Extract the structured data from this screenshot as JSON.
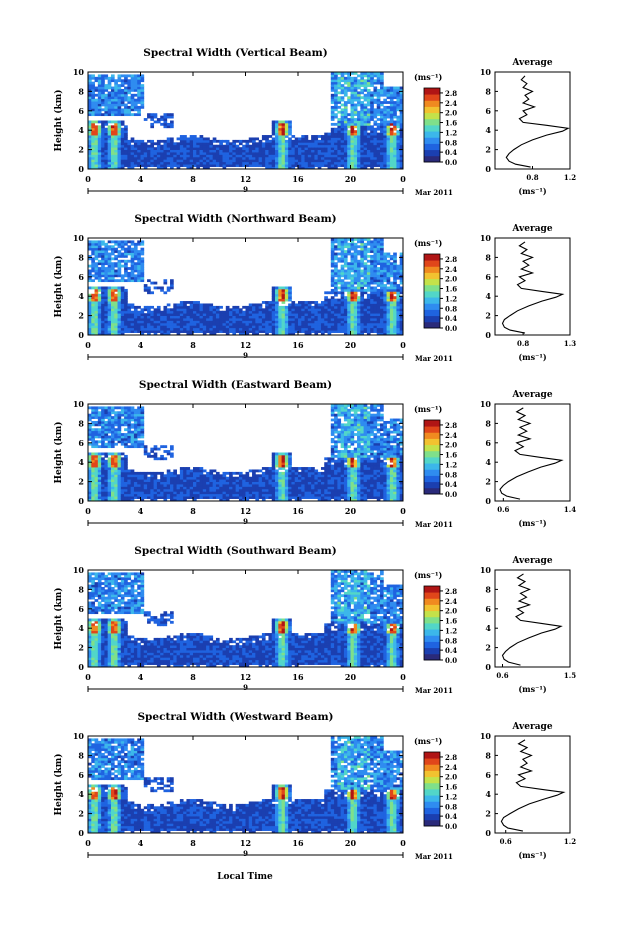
{
  "figure": {
    "x_axis_label": "Local Time",
    "date_label": "Mar 2011",
    "day_marker": "9",
    "colorbar_unit": "(ms⁻¹)",
    "colors": {
      "colormap": [
        "#2a2a7a",
        "#1b3fb0",
        "#1f63e0",
        "#2f8cf0",
        "#3cb7ea",
        "#52d6c8",
        "#7fe08a",
        "#c4e24a",
        "#f2c230",
        "#f08a20",
        "#e0461a",
        "#b01515"
      ]
    }
  },
  "chart_data": [
    {
      "type": "heatmap",
      "title": "Spectral Width (Vertical Beam)",
      "xlabel": "Local Time",
      "ylabel": "Height (km)",
      "x_ticks": [
        "0",
        "4",
        "8",
        "12",
        "16",
        "20",
        "0"
      ],
      "y_ticks": [
        "0",
        "2",
        "4",
        "6",
        "8",
        "10"
      ],
      "xlim": [
        0,
        24
      ],
      "ylim": [
        0,
        10
      ],
      "colorbar": {
        "unit": "(ms⁻¹)",
        "ticks": [
          "0.0",
          "0.4",
          "0.8",
          "1.2",
          "1.6",
          "2.0",
          "2.4",
          "2.8"
        ],
        "range": [
          0,
          3.0
        ]
      },
      "average_profile": {
        "title": "Average",
        "xlabel": "(ms⁻¹)",
        "x_ticks": [
          "0.8",
          "1.2"
        ],
        "xlim": [
          0.4,
          1.2
        ],
        "y_ticks": [
          "0",
          "2",
          "4",
          "6",
          "8",
          "10"
        ],
        "heights": [
          0.2,
          0.5,
          0.8,
          1.2,
          1.6,
          2.0,
          2.5,
          3.0,
          3.5,
          3.9,
          4.2,
          4.5,
          4.8,
          5.2,
          5.6,
          6.0,
          6.4,
          6.8,
          7.2,
          7.6,
          8.0,
          8.4,
          8.8,
          9.2,
          9.6
        ],
        "values": [
          0.78,
          0.62,
          0.55,
          0.52,
          0.55,
          0.6,
          0.68,
          0.8,
          0.95,
          1.12,
          1.18,
          0.95,
          0.7,
          0.66,
          0.74,
          0.7,
          0.82,
          0.7,
          0.76,
          0.72,
          0.8,
          0.7,
          0.74,
          0.68,
          0.72
        ]
      }
    },
    {
      "type": "heatmap",
      "title": "Spectral Width (Northward Beam)",
      "xlabel": "Local Time",
      "ylabel": "Height (km)",
      "x_ticks": [
        "0",
        "4",
        "8",
        "12",
        "16",
        "20",
        "0"
      ],
      "y_ticks": [
        "0",
        "2",
        "4",
        "6",
        "8",
        "10"
      ],
      "xlim": [
        0,
        24
      ],
      "ylim": [
        0,
        10
      ],
      "colorbar": {
        "unit": "(ms⁻¹)",
        "ticks": [
          "0.0",
          "0.4",
          "0.8",
          "1.2",
          "1.6",
          "2.0",
          "2.4",
          "2.8"
        ],
        "range": [
          0,
          3.0
        ]
      },
      "average_profile": {
        "title": "Average",
        "xlabel": "(ms⁻¹)",
        "x_ticks": [
          "0.8",
          "1.3"
        ],
        "xlim": [
          0.5,
          1.3
        ],
        "y_ticks": [
          "0",
          "2",
          "4",
          "6",
          "8",
          "10"
        ],
        "heights": [
          0.2,
          0.5,
          0.8,
          1.2,
          1.6,
          2.0,
          2.5,
          3.0,
          3.5,
          3.9,
          4.2,
          4.5,
          4.8,
          5.2,
          5.6,
          6.0,
          6.4,
          6.8,
          7.2,
          7.6,
          8.0,
          8.4,
          8.8,
          9.2,
          9.6
        ],
        "values": [
          0.82,
          0.66,
          0.6,
          0.58,
          0.6,
          0.66,
          0.74,
          0.86,
          1.0,
          1.15,
          1.22,
          1.0,
          0.78,
          0.74,
          0.82,
          0.76,
          0.9,
          0.78,
          0.86,
          0.8,
          0.9,
          0.78,
          0.84,
          0.76,
          0.82
        ]
      }
    },
    {
      "type": "heatmap",
      "title": "Spectral Width (Eastward Beam)",
      "xlabel": "Local Time",
      "ylabel": "Height (km)",
      "x_ticks": [
        "0",
        "4",
        "8",
        "12",
        "16",
        "20",
        "0"
      ],
      "y_ticks": [
        "0",
        "2",
        "4",
        "6",
        "8",
        "10"
      ],
      "xlim": [
        0,
        24
      ],
      "ylim": [
        0,
        10
      ],
      "colorbar": {
        "unit": "(ms⁻¹)",
        "ticks": [
          "0.0",
          "0.4",
          "0.8",
          "1.2",
          "1.6",
          "2.0",
          "2.4",
          "2.8"
        ],
        "range": [
          0,
          3.0
        ]
      },
      "average_profile": {
        "title": "Average",
        "xlabel": "(ms⁻¹)",
        "x_ticks": [
          "0.6",
          "1.4"
        ],
        "xlim": [
          0.5,
          1.4
        ],
        "y_ticks": [
          "0",
          "2",
          "4",
          "6",
          "8",
          "10"
        ],
        "heights": [
          0.2,
          0.5,
          0.8,
          1.2,
          1.6,
          2.0,
          2.5,
          3.0,
          3.5,
          3.9,
          4.2,
          4.5,
          4.8,
          5.2,
          5.6,
          6.0,
          6.4,
          6.8,
          7.2,
          7.6,
          8.0,
          8.4,
          8.8,
          9.2,
          9.6
        ],
        "values": [
          0.8,
          0.64,
          0.58,
          0.56,
          0.6,
          0.66,
          0.76,
          0.9,
          1.05,
          1.22,
          1.3,
          1.05,
          0.8,
          0.74,
          0.84,
          0.76,
          0.92,
          0.78,
          0.88,
          0.8,
          0.92,
          0.78,
          0.86,
          0.76,
          0.84
        ]
      }
    },
    {
      "type": "heatmap",
      "title": "Spectral Width (Southward Beam)",
      "xlabel": "Local Time",
      "ylabel": "Height (km)",
      "x_ticks": [
        "0",
        "4",
        "8",
        "12",
        "16",
        "20",
        "0"
      ],
      "y_ticks": [
        "0",
        "2",
        "4",
        "6",
        "8",
        "10"
      ],
      "xlim": [
        0,
        24
      ],
      "ylim": [
        0,
        10
      ],
      "colorbar": {
        "unit": "(ms⁻¹)",
        "ticks": [
          "0.0",
          "0.4",
          "0.8",
          "1.2",
          "1.6",
          "2.0",
          "2.4",
          "2.8"
        ],
        "range": [
          0,
          3.0
        ]
      },
      "average_profile": {
        "title": "Average",
        "xlabel": "(ms⁻¹)",
        "x_ticks": [
          "0.6",
          "1.5"
        ],
        "xlim": [
          0.5,
          1.5
        ],
        "y_ticks": [
          "0",
          "2",
          "4",
          "6",
          "8",
          "10"
        ],
        "heights": [
          0.2,
          0.5,
          0.8,
          1.2,
          1.6,
          2.0,
          2.5,
          3.0,
          3.5,
          3.9,
          4.2,
          4.5,
          4.8,
          5.2,
          5.6,
          6.0,
          6.4,
          6.8,
          7.2,
          7.6,
          8.0,
          8.4,
          8.8,
          9.2,
          9.6
        ],
        "values": [
          0.84,
          0.68,
          0.62,
          0.6,
          0.64,
          0.7,
          0.8,
          0.95,
          1.12,
          1.3,
          1.38,
          1.12,
          0.84,
          0.78,
          0.88,
          0.8,
          0.96,
          0.82,
          0.92,
          0.84,
          0.96,
          0.82,
          0.9,
          0.8,
          0.88
        ]
      }
    },
    {
      "type": "heatmap",
      "title": "Spectral Width (Westward Beam)",
      "xlabel": "Local Time",
      "ylabel": "Height (km)",
      "x_ticks": [
        "0",
        "4",
        "8",
        "12",
        "16",
        "20",
        "0"
      ],
      "y_ticks": [
        "0",
        "2",
        "4",
        "6",
        "8",
        "10"
      ],
      "xlim": [
        0,
        24
      ],
      "ylim": [
        0,
        10
      ],
      "colorbar": {
        "unit": "(ms⁻¹)",
        "ticks": [
          "0.0",
          "0.4",
          "0.8",
          "1.2",
          "1.6",
          "2.0",
          "2.4",
          "2.8"
        ],
        "range": [
          0,
          3.0
        ]
      },
      "average_profile": {
        "title": "Average",
        "xlabel": "(ms⁻¹)",
        "x_ticks": [
          "0.6",
          "1.2"
        ],
        "xlim": [
          0.5,
          1.2
        ],
        "y_ticks": [
          "0",
          "2",
          "4",
          "6",
          "8",
          "10"
        ],
        "heights": [
          0.2,
          0.5,
          0.8,
          1.2,
          1.6,
          2.0,
          2.5,
          3.0,
          3.5,
          3.9,
          4.2,
          4.5,
          4.8,
          5.2,
          5.6,
          6.0,
          6.4,
          6.8,
          7.2,
          7.6,
          8.0,
          8.4,
          8.8,
          9.2,
          9.6
        ],
        "values": [
          0.76,
          0.62,
          0.58,
          0.56,
          0.58,
          0.64,
          0.72,
          0.82,
          0.96,
          1.08,
          1.14,
          0.94,
          0.74,
          0.7,
          0.78,
          0.72,
          0.84,
          0.74,
          0.8,
          0.76,
          0.84,
          0.74,
          0.8,
          0.72,
          0.78
        ]
      }
    }
  ]
}
